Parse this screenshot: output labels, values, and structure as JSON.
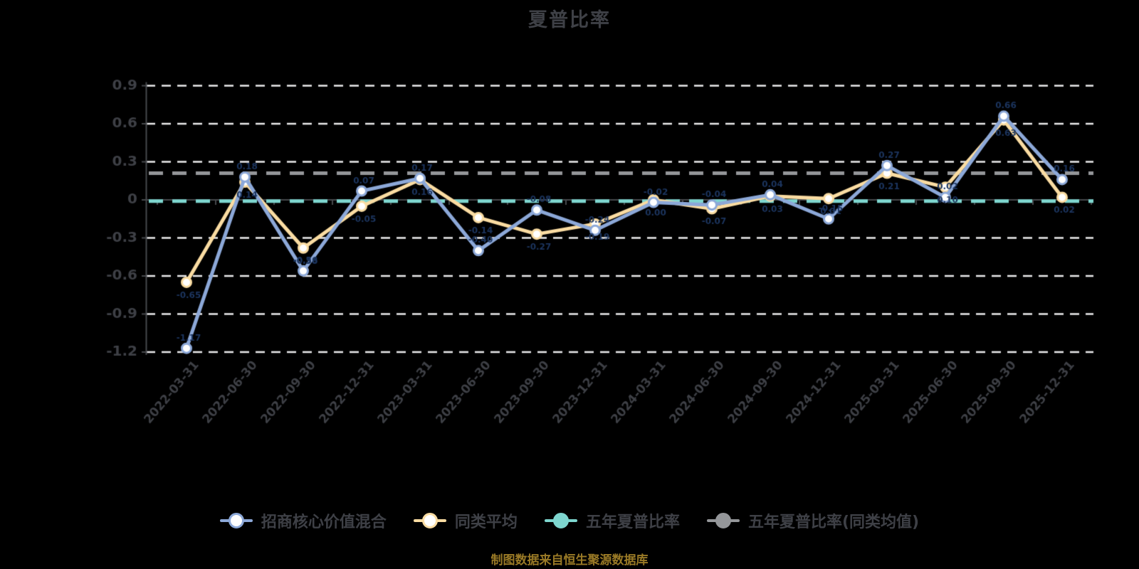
{
  "title": "夏普比率",
  "caption": "制图数据来自恒生聚源数据库",
  "colors": {
    "background": "#000000",
    "grid_line": "#ebebed",
    "axis_line": "#46484c",
    "text_dark": "#3e4046",
    "caption_gold": "#9a7a26",
    "point_label_navy": "#1c355f",
    "fund_blue": "#8ca8d8",
    "category_cream": "#fadca2",
    "five_year_teal": "#7ed6cf",
    "five_year_gray": "#949699"
  },
  "legend": {
    "items": [
      {
        "label": "招商核心价值混合",
        "color": "#8ca8d8",
        "dot": "hollow"
      },
      {
        "label": "同类平均",
        "color": "#fadca2",
        "dot": "hollow"
      },
      {
        "label": "五年夏普比率",
        "color": "#7ed6cf",
        "dot": "solid"
      },
      {
        "label": "五年夏普比率(同类均值)",
        "color": "#949699",
        "dot": "solid"
      }
    ]
  },
  "chart_data": {
    "type": "line",
    "title": "夏普比率",
    "categories": [
      "2022-03-31",
      "2022-06-30",
      "2022-09-30",
      "2022-12-31",
      "2023-03-31",
      "2023-06-30",
      "2023-09-30",
      "2023-12-31",
      "2024-03-31",
      "2024-06-30",
      "2024-09-30",
      "2024-12-31",
      "2025-03-31",
      "2025-06-30",
      "2025-09-30",
      "2025-12-31"
    ],
    "series": [
      {
        "name": "招商核心价值混合",
        "type": "line",
        "style": "solid",
        "color": "#8ca8d8",
        "marker": "white-circle",
        "values": [
          -1.17,
          0.18,
          -0.56,
          0.07,
          0.17,
          -0.4,
          -0.08,
          -0.24,
          -0.02,
          -0.04,
          0.04,
          -0.15,
          0.27,
          0.02,
          0.66,
          0.16
        ]
      },
      {
        "name": "同类平均",
        "type": "line",
        "style": "solid",
        "color": "#fadca2",
        "marker": "white-circle",
        "values": [
          -0.65,
          0.14,
          -0.38,
          -0.05,
          0.16,
          -0.14,
          -0.27,
          -0.19,
          0.0,
          -0.07,
          0.03,
          0.01,
          0.21,
          0.1,
          0.63,
          0.02
        ]
      },
      {
        "name": "五年夏普比率",
        "type": "reference-line",
        "style": "dashed",
        "color": "#7ed6cf",
        "value": -0.01
      },
      {
        "name": "五年夏普比率(同类均值)",
        "type": "reference-line",
        "style": "dashed",
        "color": "#949699",
        "value": 0.21
      }
    ],
    "ylim": [
      -1.2,
      0.9
    ],
    "ytick_step": 0.3,
    "yticks": [
      0.9,
      0.6,
      0.3,
      0,
      -0.3,
      -0.6,
      -0.9,
      -1.2
    ],
    "grid": "horizontal-dashed-white",
    "x_axis_position": "on-zero",
    "x_label_rotation_deg": -50,
    "legend_position": "bottom"
  }
}
